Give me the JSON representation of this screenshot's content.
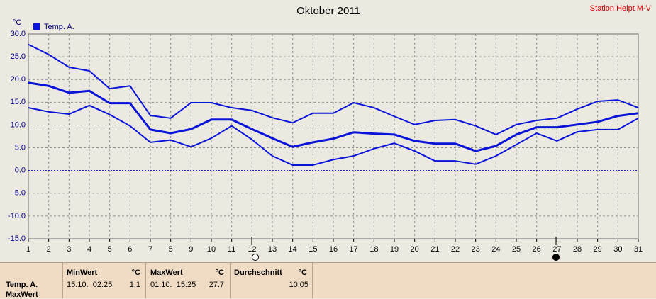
{
  "chart_data": {
    "type": "line",
    "title": "Oktober 2011",
    "station": "Station Helpt M-V",
    "y_unit": "°C",
    "x": [
      1,
      2,
      3,
      4,
      5,
      6,
      7,
      8,
      9,
      10,
      11,
      12,
      13,
      14,
      15,
      16,
      17,
      18,
      19,
      20,
      21,
      22,
      23,
      24,
      25,
      26,
      27,
      28,
      29,
      30,
      31
    ],
    "series": [
      {
        "name": "Temp. A.",
        "color": "#0a14d8",
        "values": [
          19.3,
          18.6,
          17.1,
          17.5,
          14.8,
          14.8,
          9.0,
          8.2,
          9.1,
          11.2,
          11.2,
          9.1,
          7.1,
          5.2,
          6.2,
          7.0,
          8.4,
          8.1,
          7.9,
          6.5,
          5.9,
          5.9,
          4.3,
          5.4,
          7.9,
          9.5,
          9.5,
          10.1,
          10.7,
          12.0,
          12.6
        ]
      },
      {
        "color": "#0a14d8",
        "values": [
          27.7,
          25.5,
          22.7,
          21.9,
          18.0,
          18.6,
          12.1,
          11.5,
          14.9,
          14.9,
          13.8,
          13.2,
          11.6,
          10.5,
          12.6,
          12.6,
          14.9,
          13.8,
          11.9,
          10.1,
          11.0,
          11.2,
          9.8,
          7.9,
          10.1,
          11.0,
          11.5,
          13.5,
          15.2,
          15.5,
          13.8
        ]
      },
      {
        "color": "#0a14d8",
        "values": [
          13.8,
          12.9,
          12.4,
          14.3,
          12.3,
          9.8,
          6.2,
          6.7,
          5.2,
          7.1,
          9.8,
          6.8,
          3.2,
          1.2,
          1.2,
          2.4,
          3.2,
          4.8,
          6.0,
          4.3,
          2.1,
          2.1,
          1.4,
          3.2,
          5.7,
          8.2,
          6.5,
          8.5,
          9.0,
          9.0,
          11.5
        ]
      }
    ],
    "xlim": [
      1,
      31
    ],
    "xticks": [
      1,
      2,
      3,
      4,
      5,
      6,
      7,
      8,
      9,
      10,
      11,
      12,
      13,
      14,
      15,
      16,
      17,
      18,
      19,
      20,
      21,
      22,
      23,
      24,
      25,
      26,
      27,
      28,
      29,
      30,
      31
    ],
    "ylim": [
      -15,
      30
    ],
    "yticks": [
      {
        "value": -15,
        "label": "-15.0"
      },
      {
        "value": -10,
        "label": "-10.0"
      },
      {
        "value": -5,
        "label": "-5.0"
      },
      {
        "value": 0,
        "label": "0.0"
      },
      {
        "value": 5,
        "label": "5.0"
      },
      {
        "value": 10,
        "label": "10.0"
      },
      {
        "value": 15,
        "label": "15.0"
      },
      {
        "value": 20,
        "label": "20.0"
      },
      {
        "value": 25,
        "label": "25.0"
      },
      {
        "value": 30,
        "label": "30.0"
      }
    ],
    "grid": true,
    "zero_line_color": "#0000c0"
  },
  "table": {
    "headers": [
      "MinWert",
      "°C",
      "MaxWert",
      "°C",
      "Durchschnitt",
      "°C"
    ],
    "rows": [
      [
        "Temp. A.",
        "15.10.  02:25",
        "1.1",
        "01.10.  15:25",
        "27.7",
        "10.05"
      ]
    ],
    "next_row_label": "MaxWert"
  }
}
